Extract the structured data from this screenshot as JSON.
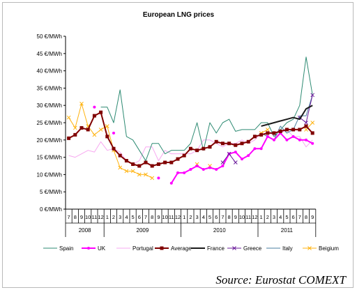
{
  "chart_data": {
    "type": "line",
    "title": "European LNG prices",
    "xlabel": "",
    "ylabel": "",
    "y_ticks": [
      "0 €/MWh",
      "5 €/MWh",
      "10 €/MWh",
      "15 €/MWh",
      "20 €/MWh",
      "25 €/MWh",
      "30 €/MWh",
      "35 €/MWh",
      "40 €/MWh",
      "45 €/MWh",
      "50 €/MWh"
    ],
    "ylim": [
      0,
      50
    ],
    "grid": false,
    "legend_position": "bottom",
    "month_labels": [
      "7",
      "8",
      "9",
      "10",
      "11",
      "12",
      "1",
      "2",
      "3",
      "4",
      "5",
      "6",
      "7",
      "8",
      "9",
      "10",
      "11",
      "12",
      "1",
      "2",
      "3",
      "4",
      "5",
      "6",
      "7",
      "8",
      "9",
      "10",
      "11",
      "12",
      "1",
      "2",
      "3",
      "4",
      "5",
      "6",
      "7",
      "8",
      "9"
    ],
    "year_groups": [
      {
        "label": "2008",
        "count": 6
      },
      {
        "label": "2009",
        "count": 12
      },
      {
        "label": "2010",
        "count": 12
      },
      {
        "label": "2011",
        "count": 9
      }
    ],
    "series": [
      {
        "name": "Spain",
        "color": "#2e8b73",
        "marker": "none",
        "width": 1,
        "values": [
          null,
          null,
          null,
          null,
          null,
          29.5,
          29.5,
          25,
          34.5,
          21,
          20,
          17,
          14,
          19,
          19,
          16,
          17,
          17,
          17,
          19,
          25,
          17,
          25,
          22,
          25,
          26,
          22.5,
          23,
          23,
          23,
          25,
          25,
          21,
          23,
          25,
          26,
          30,
          44,
          33
        ]
      },
      {
        "name": "UK",
        "color": "#ff00ff",
        "marker": "dot",
        "width": 2,
        "values": [
          null,
          null,
          null,
          null,
          29.5,
          null,
          null,
          22,
          null,
          null,
          null,
          null,
          null,
          null,
          9,
          null,
          7.5,
          10.5,
          10.5,
          11.5,
          12.5,
          11.5,
          12,
          11.5,
          12.5,
          16,
          16.5,
          14.5,
          15.5,
          17.5,
          17.5,
          21,
          20,
          22,
          20,
          21,
          20,
          20,
          19
        ]
      },
      {
        "name": "Portugal",
        "color": "#f7a8f0",
        "marker": "none",
        "width": 1,
        "values": [
          15.5,
          15,
          16,
          17,
          16.5,
          19.5,
          17,
          17.5,
          16.5,
          14,
          13,
          14,
          18,
          18,
          14,
          17,
          16,
          16,
          16,
          16,
          17,
          20,
          20,
          19,
          18,
          19,
          19,
          20,
          19,
          20,
          22,
          23,
          21,
          22,
          23,
          21,
          21,
          18,
          20
        ]
      },
      {
        "name": "Average",
        "color": "#800000",
        "marker": "square",
        "width": 2,
        "values": [
          20.5,
          21.5,
          23.5,
          23,
          27,
          28,
          21,
          17.5,
          15.5,
          14,
          13,
          12.5,
          13.5,
          12.5,
          13,
          13.5,
          13.5,
          14.5,
          15.5,
          17.5,
          17,
          17.5,
          18,
          19.5,
          19,
          19,
          18.5,
          19,
          19.5,
          21,
          21.5,
          22,
          22,
          22.5,
          23,
          23,
          23,
          24,
          22
        ]
      },
      {
        "name": "France",
        "color": "#1a1a1a",
        "marker": "none",
        "width": 2,
        "values": [
          null,
          null,
          null,
          null,
          null,
          null,
          null,
          null,
          null,
          null,
          null,
          null,
          null,
          null,
          null,
          null,
          null,
          null,
          null,
          null,
          null,
          null,
          null,
          null,
          null,
          null,
          null,
          null,
          null,
          null,
          24,
          24.5,
          25,
          25.5,
          26,
          26.5,
          26,
          29,
          30
        ]
      },
      {
        "name": "Greece",
        "color": "#6a1b9a",
        "marker": "x",
        "width": 1,
        "values": [
          null,
          null,
          null,
          null,
          null,
          null,
          null,
          null,
          null,
          null,
          null,
          null,
          null,
          null,
          null,
          null,
          null,
          null,
          null,
          null,
          null,
          null,
          null,
          null,
          13.5,
          16,
          13.5,
          null,
          null,
          null,
          null,
          null,
          null,
          null,
          null,
          null,
          26.5,
          25,
          33
        ]
      },
      {
        "name": "Italy",
        "color": "#4a7fa0",
        "marker": "none",
        "width": 1,
        "values": [
          null,
          null,
          null,
          null,
          null,
          null,
          null,
          null,
          null,
          null,
          null,
          null,
          null,
          null,
          null,
          null,
          null,
          null,
          null,
          null,
          null,
          null,
          null,
          null,
          null,
          null,
          null,
          null,
          null,
          null,
          22,
          21,
          20,
          24,
          22,
          23,
          27,
          27,
          33
        ]
      },
      {
        "name": "Beigium",
        "color": "#ffb310",
        "marker": "x",
        "width": 1,
        "values": [
          26.5,
          23.5,
          30.5,
          24,
          21.5,
          23,
          24,
          17,
          12,
          11,
          11,
          10,
          10,
          9,
          null,
          null,
          null,
          null,
          null,
          null,
          13,
          null,
          12.5,
          null,
          null,
          null,
          null,
          null,
          null,
          null,
          22,
          23,
          null,
          null,
          null,
          null,
          null,
          23,
          25
        ]
      }
    ]
  },
  "source": "Source: Eurostat COMEXT"
}
